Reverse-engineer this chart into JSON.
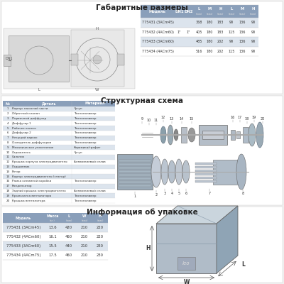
{
  "title_gabarit": "Габаритные размеры",
  "title_struct": "Структурная схема",
  "title_package": "Информация об упаковке",
  "bg_color": "#f0f0f0",
  "section_bg": "#ffffff",
  "table_header_color": "#8a9fba",
  "table_row_even": "#dce4ed",
  "table_row_odd": "#ffffff",
  "gabarit_rows": [
    [
      "775431 (3ACm45)",
      "",
      "",
      "368",
      "180",
      "183",
      "90",
      "136",
      "90"
    ],
    [
      "775432 (4ACm60)",
      "1\"",
      "1\"",
      "405",
      "180",
      "183",
      "115",
      "136",
      "90"
    ],
    [
      "775433 (3ACm60)",
      "",
      "",
      "485",
      "180",
      "202",
      "90",
      "136",
      "90"
    ],
    [
      "775434 (4ACm75)",
      "",
      "",
      "516",
      "180",
      "202",
      "115",
      "136",
      "90"
    ]
  ],
  "gabarit_col_labels": [
    "Модель",
    "DN1",
    "DN2",
    "L\n(мм)",
    "M\n(мм)",
    "H\n(мм)",
    "L\n(мм)",
    "M\n(мм)",
    "H\n(мм)"
  ],
  "struct_parts": [
    [
      "1",
      "Корпус насосной части",
      "Чугун"
    ],
    [
      "2",
      "Обратный клапан",
      "Технополимер"
    ],
    [
      "3",
      "Первичный диффузор",
      "Технополимер"
    ],
    [
      "4",
      "Диффузор 1",
      "Технополимер"
    ],
    [
      "5",
      "Рабочее колесо",
      "Технополимер"
    ],
    [
      "6",
      "Диффузор 2",
      "Технополимер"
    ],
    [
      "7",
      "Несущий каркас",
      "Технополимер"
    ],
    [
      "8",
      "Охладитель диффузоров",
      "Технополимер"
    ],
    [
      "9",
      "Механическое уплотнение",
      "Керамика/графит"
    ],
    [
      "10",
      "Отражатель",
      "Чугун"
    ],
    [
      "11",
      "Сальник",
      ""
    ],
    [
      "12",
      "Крышка корпуса электродвигателя",
      "Алюминиевый сплав"
    ],
    [
      "13",
      "Подшипник",
      ""
    ],
    [
      "14",
      "Ротор",
      ""
    ],
    [
      "15",
      "Корпус электродвигателя (статор)",
      ""
    ],
    [
      "16",
      "Рамка клеммной коробки",
      "Технополимер"
    ],
    [
      "17",
      "Конденсатор",
      ""
    ],
    [
      "18",
      "Задний крышка электродвигателя",
      "Алюминиевый сплав"
    ],
    [
      "19",
      "Крыльчатка вентилятора",
      "Технополимер"
    ],
    [
      "20",
      "Крышка вентилятора",
      "Технополимер"
    ]
  ],
  "package_headers": [
    "Модель",
    "Масса\n(кг)",
    "L\n(мм)",
    "W\n(мм)",
    "H\n(мм)"
  ],
  "package_rows": [
    [
      "775431 (3ACm45)",
      "13.6",
      "420",
      "210",
      "220"
    ],
    [
      "775432 (4ACm60)",
      "16.1",
      "460",
      "210",
      "220"
    ],
    [
      "775433 (3ACm60)",
      "15.5",
      "440",
      "210",
      "230"
    ],
    [
      "775434 (4ACm75)",
      "17.5",
      "460",
      "210",
      "230"
    ]
  ]
}
